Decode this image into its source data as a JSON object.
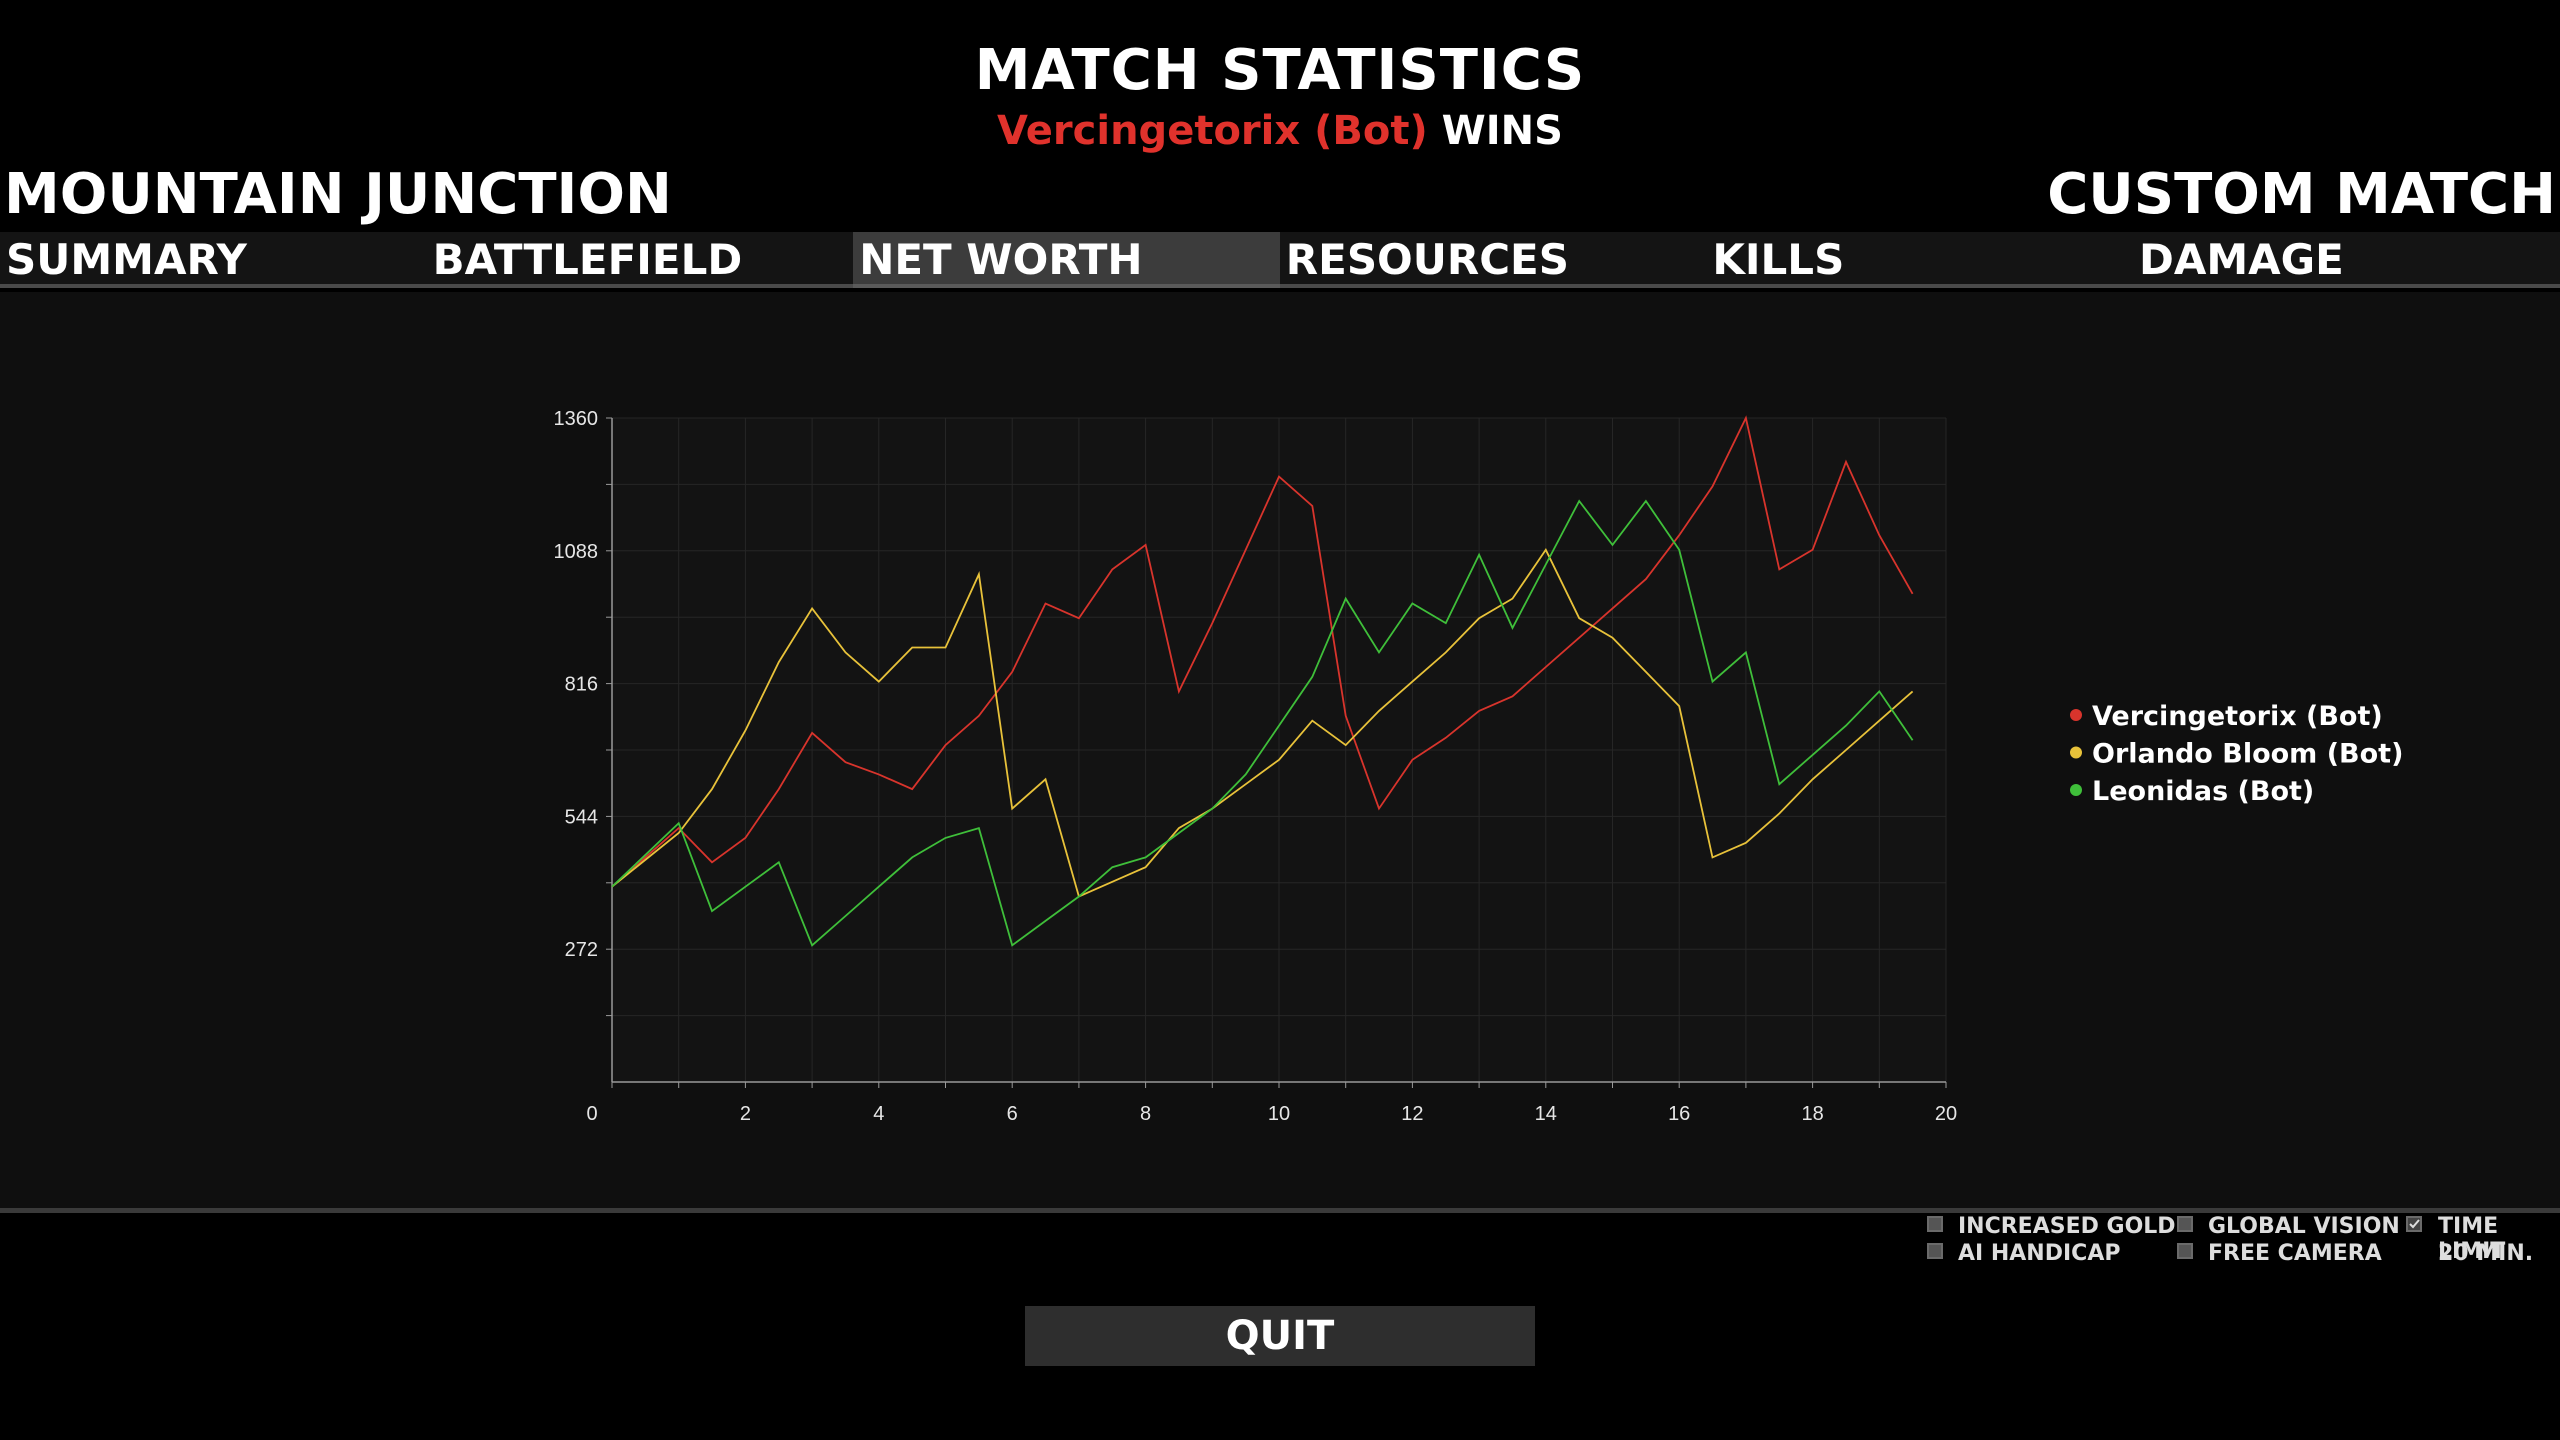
{
  "header": {
    "title": "MATCH STATISTICS",
    "winner_name": "Vercingetorix (Bot)",
    "winner_suffix": "WINS"
  },
  "map_name": "MOUNTAIN JUNCTION",
  "mode_name": "CUSTOM MATCH",
  "tabs": [
    {
      "label": "SUMMARY",
      "active": false
    },
    {
      "label": "BATTLEFIELD",
      "active": false
    },
    {
      "label": "NET WORTH",
      "active": true
    },
    {
      "label": "RESOURCES",
      "active": false
    },
    {
      "label": "KILLS",
      "active": false
    },
    {
      "label": "DAMAGE",
      "active": false
    }
  ],
  "chart_data": {
    "type": "line",
    "xlim": [
      0,
      20
    ],
    "ylim": [
      0,
      1360
    ],
    "x_ticks": [
      "0",
      "2",
      "4",
      "6",
      "8",
      "10",
      "12",
      "14",
      "16",
      "18",
      "20"
    ],
    "y_ticks": [
      "272",
      "544",
      "816",
      "1088",
      "1360"
    ],
    "grid": true,
    "legend_position": "right",
    "series": [
      {
        "name": "Vercingetorix (Bot)",
        "color": "#d8342c",
        "points": [
          [
            0,
            400
          ],
          [
            1,
            520
          ],
          [
            1.5,
            450
          ],
          [
            2,
            500
          ],
          [
            2.5,
            600
          ],
          [
            3,
            715
          ],
          [
            3.5,
            655
          ],
          [
            4,
            630
          ],
          [
            4.5,
            600
          ],
          [
            5,
            690
          ],
          [
            5.5,
            750
          ],
          [
            6,
            840
          ],
          [
            6.5,
            980
          ],
          [
            7,
            950
          ],
          [
            7.5,
            1050
          ],
          [
            8,
            1100
          ],
          [
            8.5,
            800
          ],
          [
            9,
            940
          ],
          [
            9.5,
            1090
          ],
          [
            10,
            1240
          ],
          [
            10.5,
            1180
          ],
          [
            11,
            750
          ],
          [
            11.5,
            560
          ],
          [
            12,
            660
          ],
          [
            12.5,
            705
          ],
          [
            13,
            760
          ],
          [
            13.5,
            790
          ],
          [
            14,
            850
          ],
          [
            14.5,
            910
          ],
          [
            15,
            970
          ],
          [
            15.5,
            1030
          ],
          [
            16,
            1120
          ],
          [
            16.5,
            1220
          ],
          [
            17,
            1360
          ],
          [
            17.5,
            1050
          ],
          [
            18,
            1090
          ],
          [
            18.5,
            1270
          ],
          [
            19,
            1120
          ],
          [
            19.5,
            1000
          ]
        ]
      },
      {
        "name": "Orlando Bloom (Bot)",
        "color": "#e8c23a",
        "points": [
          [
            0,
            400
          ],
          [
            1,
            510
          ],
          [
            1.5,
            600
          ],
          [
            2,
            720
          ],
          [
            2.5,
            860
          ],
          [
            3,
            970
          ],
          [
            3.5,
            880
          ],
          [
            4,
            820
          ],
          [
            4.5,
            890
          ],
          [
            5,
            890
          ],
          [
            5.5,
            1040
          ],
          [
            6,
            560
          ],
          [
            6.5,
            620
          ],
          [
            7,
            380
          ],
          [
            7.5,
            410
          ],
          [
            8,
            440
          ],
          [
            8.5,
            520
          ],
          [
            9,
            560
          ],
          [
            9.5,
            610
          ],
          [
            10,
            660
          ],
          [
            10.5,
            740
          ],
          [
            11,
            690
          ],
          [
            11.5,
            760
          ],
          [
            12,
            820
          ],
          [
            12.5,
            880
          ],
          [
            13,
            950
          ],
          [
            13.5,
            990
          ],
          [
            14,
            1090
          ],
          [
            14.5,
            950
          ],
          [
            15,
            910
          ],
          [
            15.5,
            840
          ],
          [
            16,
            770
          ],
          [
            16.5,
            460
          ],
          [
            17,
            490
          ],
          [
            17.5,
            550
          ],
          [
            18,
            620
          ],
          [
            18.5,
            680
          ],
          [
            19,
            740
          ],
          [
            19.5,
            800
          ]
        ]
      },
      {
        "name": "Leonidas (Bot)",
        "color": "#3fbf3a",
        "points": [
          [
            0,
            400
          ],
          [
            1,
            530
          ],
          [
            1.5,
            350
          ],
          [
            2,
            400
          ],
          [
            2.5,
            450
          ],
          [
            3,
            280
          ],
          [
            3.5,
            340
          ],
          [
            4,
            400
          ],
          [
            4.5,
            460
          ],
          [
            5,
            500
          ],
          [
            5.5,
            520
          ],
          [
            6,
            280
          ],
          [
            6.5,
            330
          ],
          [
            7,
            380
          ],
          [
            7.5,
            440
          ],
          [
            8,
            460
          ],
          [
            8.5,
            510
          ],
          [
            9,
            560
          ],
          [
            9.5,
            630
          ],
          [
            10,
            730
          ],
          [
            10.5,
            830
          ],
          [
            11,
            990
          ],
          [
            11.5,
            880
          ],
          [
            12,
            980
          ],
          [
            12.5,
            940
          ],
          [
            13,
            1080
          ],
          [
            13.5,
            930
          ],
          [
            14,
            1060
          ],
          [
            14.5,
            1190
          ],
          [
            15,
            1100
          ],
          [
            15.5,
            1190
          ],
          [
            16,
            1090
          ],
          [
            16.5,
            820
          ],
          [
            17,
            880
          ],
          [
            17.5,
            610
          ],
          [
            18,
            670
          ],
          [
            18.5,
            730
          ],
          [
            19,
            800
          ],
          [
            19.5,
            700
          ]
        ]
      }
    ]
  },
  "options": {
    "increased_gold": {
      "label": "INCREASED GOLD",
      "checked": false
    },
    "ai_handicap": {
      "label": "AI HANDICAP",
      "checked": false
    },
    "global_vision": {
      "label": "GLOBAL VISION",
      "checked": false
    },
    "free_camera": {
      "label": "FREE CAMERA",
      "checked": false
    },
    "time_limit": {
      "label": "TIME LIMIT",
      "value": "20 MIN.",
      "checked": true
    }
  },
  "quit_label": "QUIT"
}
